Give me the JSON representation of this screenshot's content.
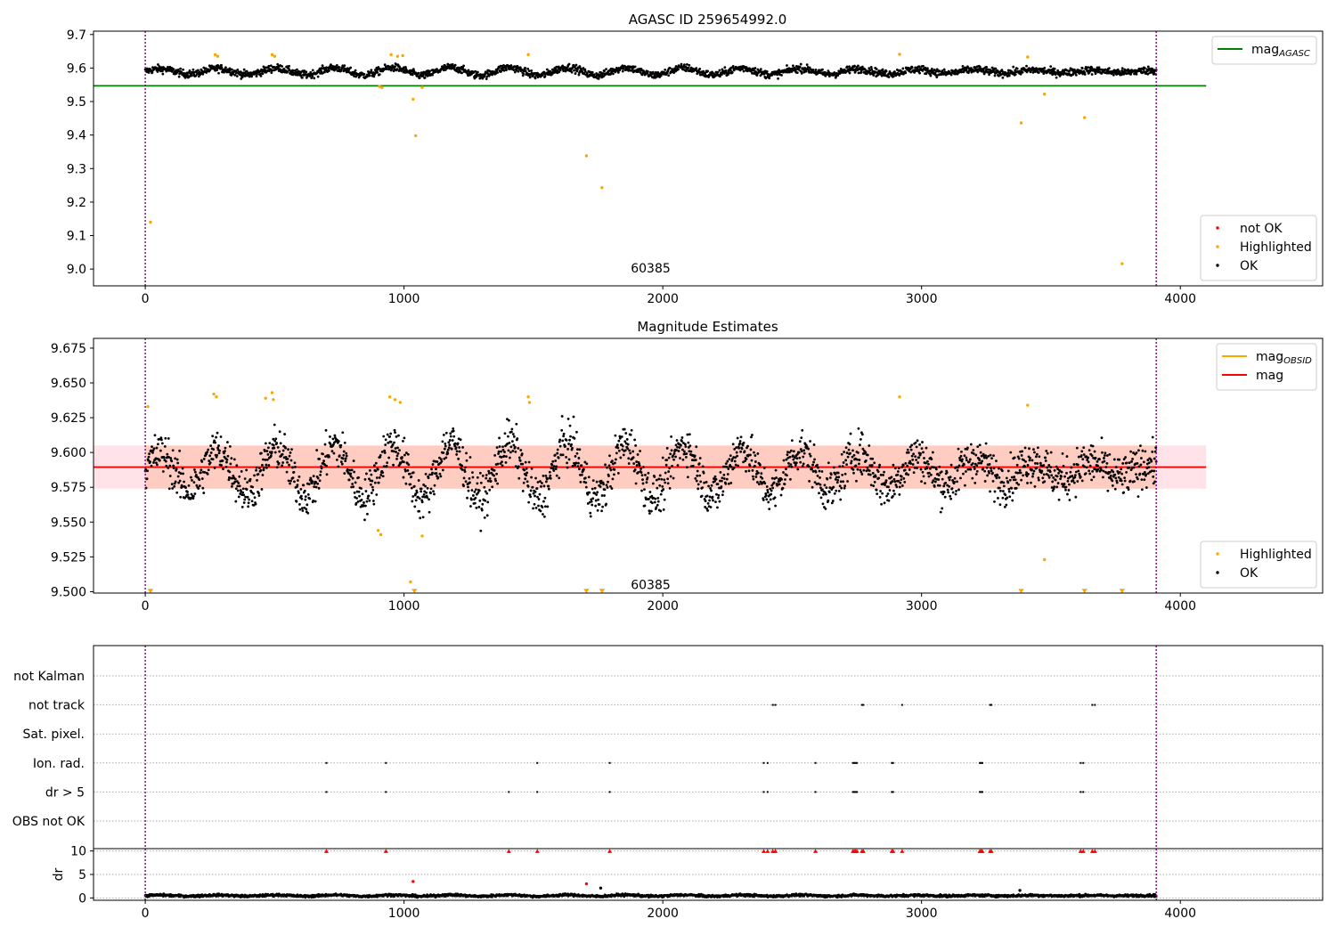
{
  "chart_data": [
    {
      "type": "scatter",
      "title": "AGASC ID 259654992.0",
      "xlim": [
        -200,
        4550
      ],
      "ylim": [
        8.95,
        9.71
      ],
      "xticks": [
        0,
        1000,
        2000,
        3000,
        4000
      ],
      "yticks": [
        9.0,
        9.1,
        9.2,
        9.3,
        9.4,
        9.5,
        9.6,
        9.7
      ],
      "ytick_decimals": 1,
      "obs_range": [
        0,
        3907
      ],
      "obsid_label": {
        "text": "60385",
        "x": 1953,
        "y": 8.99
      },
      "series": [
        {
          "name": "mag",
          "subscript": "AGASC",
          "kind": "line",
          "color": "#008000",
          "value": 9.547,
          "x_range": [
            -200,
            4100
          ]
        },
        {
          "name": "OK",
          "kind": "points",
          "color": "#000000",
          "pattern": {
            "n": 2300,
            "x_range": [
              0,
              3907
            ],
            "baseline": 9.59,
            "wave_amp": 0.012,
            "noise": 0.008
          }
        },
        {
          "name": "Highlighted",
          "kind": "points",
          "color": "#ffa500",
          "x": [
            20,
            270,
            280,
            490,
            500,
            905,
            915,
            950,
            975,
            995,
            1035,
            1045,
            1070,
            1480,
            1705,
            1765,
            2915,
            3385,
            3410,
            3475,
            3630,
            3775
          ],
          "y": [
            9.14,
            9.64,
            9.635,
            9.64,
            9.635,
            9.545,
            9.542,
            9.64,
            9.635,
            9.637,
            9.507,
            9.398,
            9.542,
            9.64,
            9.338,
            9.243,
            9.641,
            9.436,
            9.633,
            9.522,
            9.452,
            9.016
          ]
        },
        {
          "name": "not OK",
          "kind": "points",
          "color": "#ff0000",
          "x": [],
          "y": []
        }
      ],
      "legends": [
        {
          "position": "top-right",
          "entries": [
            {
              "label": "mag",
              "sub": "AGASC",
              "color": "#008000",
              "marker": "line"
            }
          ]
        },
        {
          "position": "bottom-right",
          "entries": [
            {
              "label": "not OK",
              "color": "#ff0000",
              "marker": "dot"
            },
            {
              "label": "Highlighted",
              "color": "#ffa500",
              "marker": "dot"
            },
            {
              "label": "OK",
              "color": "#000000",
              "marker": "dot"
            }
          ]
        }
      ]
    },
    {
      "type": "scatter",
      "title": "Magnitude Estimates",
      "xlim": [
        -200,
        4550
      ],
      "ylim": [
        9.499,
        9.682
      ],
      "xticks": [
        0,
        1000,
        2000,
        3000,
        4000
      ],
      "yticks": [
        9.5,
        9.525,
        9.55,
        9.575,
        9.6,
        9.625,
        9.65,
        9.675
      ],
      "ytick_decimals": 3,
      "obs_range": [
        0,
        3907
      ],
      "obsid_label": {
        "text": "60385",
        "x": 1953,
        "y": 9.502
      },
      "band": {
        "y": [
          9.574,
          9.605
        ],
        "x_range": [
          -200,
          4100
        ],
        "color": "#ffc0cb",
        "inner_range": [
          0,
          3907
        ],
        "inner_color": "#ffa07a"
      },
      "series": [
        {
          "name": "mag",
          "subscript": "OBSID",
          "kind": "line",
          "color": "#ffa500",
          "value": 9.5895,
          "x_range": [
            0,
            3907
          ]
        },
        {
          "name": "mag",
          "kind": "line",
          "color": "#ff0000",
          "value": 9.5895,
          "x_range": [
            -200,
            4100
          ]
        },
        {
          "name": "OK",
          "kind": "points",
          "color": "#000000",
          "pattern": {
            "n": 2300,
            "x_range": [
              0,
              3907
            ],
            "baseline": 9.587,
            "wave_amp": 0.02,
            "noise": 0.011
          }
        },
        {
          "name": "Highlighted",
          "kind": "points",
          "color": "#ffa500",
          "x": [
            10,
            265,
            275,
            465,
            490,
            495,
            900,
            910,
            945,
            965,
            985,
            1025,
            1070,
            1480,
            1485,
            2915,
            3410,
            3475
          ],
          "y": [
            9.633,
            9.642,
            9.64,
            9.639,
            9.643,
            9.638,
            9.544,
            9.541,
            9.64,
            9.638,
            9.636,
            9.507,
            9.54,
            9.64,
            9.636,
            9.64,
            9.634,
            9.523
          ]
        },
        {
          "name": "Highlighted (below range)",
          "kind": "triangles-down",
          "color": "#ffa500",
          "x": [
            20,
            1040,
            1705,
            1765,
            3385,
            3630,
            3775
          ],
          "y": [
            9.5,
            9.5,
            9.5,
            9.5,
            9.5,
            9.5,
            9.5
          ]
        }
      ],
      "legends": [
        {
          "position": "top-right",
          "entries": [
            {
              "label": "mag",
              "sub": "OBSID",
              "color": "#ffa500",
              "marker": "line"
            },
            {
              "label": "mag",
              "color": "#ff0000",
              "marker": "line"
            }
          ]
        },
        {
          "position": "bottom-right",
          "entries": [
            {
              "label": "Highlighted",
              "color": "#ffa500",
              "marker": "dot"
            },
            {
              "label": "OK",
              "color": "#000000",
              "marker": "dot"
            }
          ]
        }
      ]
    },
    {
      "type": "scatter",
      "title": "",
      "xlim": [
        -200,
        4550
      ],
      "xticks": [
        0,
        1000,
        2000,
        3000,
        4000
      ],
      "obs_range": [
        0,
        3907
      ],
      "flag_rows": [
        "not Kalman",
        "not track",
        "Sat. pixel.",
        "Ion. rad.",
        "dr > 5",
        "OBS not OK"
      ],
      "flag_series": [
        {
          "row": "not track",
          "x": [
            2425,
            2435,
            2770,
            2775,
            2925,
            3265,
            3270,
            3660,
            3670
          ]
        },
        {
          "row": "Ion. rad.",
          "x": [
            700,
            930,
            1515,
            1795,
            2390,
            2405,
            2590,
            2735,
            2740,
            2745,
            2750,
            2885,
            2890,
            3225,
            3230,
            3235,
            3615,
            3625
          ]
        },
        {
          "row": "dr > 5",
          "x": [
            700,
            930,
            1405,
            1515,
            1795,
            2390,
            2405,
            2590,
            2735,
            2740,
            2745,
            2750,
            2885,
            2890,
            3225,
            3230,
            3235,
            3615,
            3625
          ]
        }
      ]
    },
    {
      "type": "scatter",
      "ylabel": "dr",
      "xlim": [
        -200,
        4550
      ],
      "ylim": [
        -0.5,
        10.5
      ],
      "xticks": [
        0,
        1000,
        2000,
        3000,
        4000
      ],
      "yticks": [
        0,
        5,
        10
      ],
      "ytick_decimals": 0,
      "obs_range": [
        0,
        3907
      ],
      "series": [
        {
          "name": "dr",
          "kind": "points",
          "color": "#000000",
          "pattern": {
            "n": 2300,
            "x_range": [
              0,
              3907
            ],
            "baseline": 0.5,
            "wave_amp": 0.15,
            "noise": 0.18
          }
        },
        {
          "name": "dr outliers",
          "kind": "points",
          "color": "#000000",
          "x": [
            1760,
            3380
          ],
          "y": [
            2.1,
            1.6
          ]
        },
        {
          "name": "dr highlighted",
          "kind": "points",
          "color": "#ff0000",
          "x": [
            1035,
            1705
          ],
          "y": [
            3.5,
            3.0
          ]
        },
        {
          "name": "dr > 10",
          "kind": "triangles-up",
          "color": "#ff0000",
          "x": [
            700,
            930,
            1405,
            1515,
            1795,
            2390,
            2405,
            2425,
            2435,
            2590,
            2735,
            2740,
            2745,
            2750,
            2770,
            2775,
            2885,
            2890,
            2925,
            3225,
            3230,
            3235,
            3265,
            3270,
            3615,
            3625,
            3660,
            3670
          ],
          "y": [
            10,
            10,
            10,
            10,
            10,
            10,
            10,
            10,
            10,
            10,
            10,
            10,
            10,
            10,
            10,
            10,
            10,
            10,
            10,
            10,
            10,
            10,
            10,
            10,
            10,
            10,
            10,
            10
          ]
        }
      ]
    }
  ]
}
